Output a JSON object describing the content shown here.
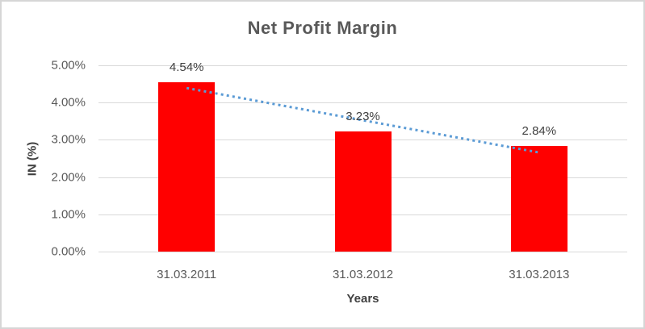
{
  "chart_data": {
    "type": "bar",
    "title": "Net Profit Margin",
    "xlabel": "Years",
    "ylabel": "IN (%)",
    "categories": [
      "31.03.2011",
      "31.03.2012",
      "31.03.2013"
    ],
    "values": [
      4.54,
      3.23,
      2.84
    ],
    "data_labels": [
      "4.54%",
      "3.23%",
      "2.84%"
    ],
    "ylim": [
      0,
      5
    ],
    "yticks": [
      {
        "value": 0,
        "label": "0.00%"
      },
      {
        "value": 1,
        "label": "1.00%"
      },
      {
        "value": 2,
        "label": "2.00%"
      },
      {
        "value": 3,
        "label": "3.00%"
      },
      {
        "value": 4,
        "label": "4.00%"
      },
      {
        "value": 5,
        "label": "5.00%"
      }
    ],
    "grid": true,
    "legend": false,
    "trendline": {
      "type": "linear",
      "style": "dotted",
      "start_category_index": 0,
      "end_category_index": 2,
      "start_value": 4.39,
      "end_value": 2.66
    }
  },
  "colors": {
    "bar": "#FF0000",
    "trendline": "#5B9BD5",
    "gridline": "#D9D9D9",
    "tick_text": "#595959",
    "title_text": "#595959",
    "axis_title_text": "#404040",
    "border": "#D6D6D6",
    "background": "#FFFFFF"
  }
}
